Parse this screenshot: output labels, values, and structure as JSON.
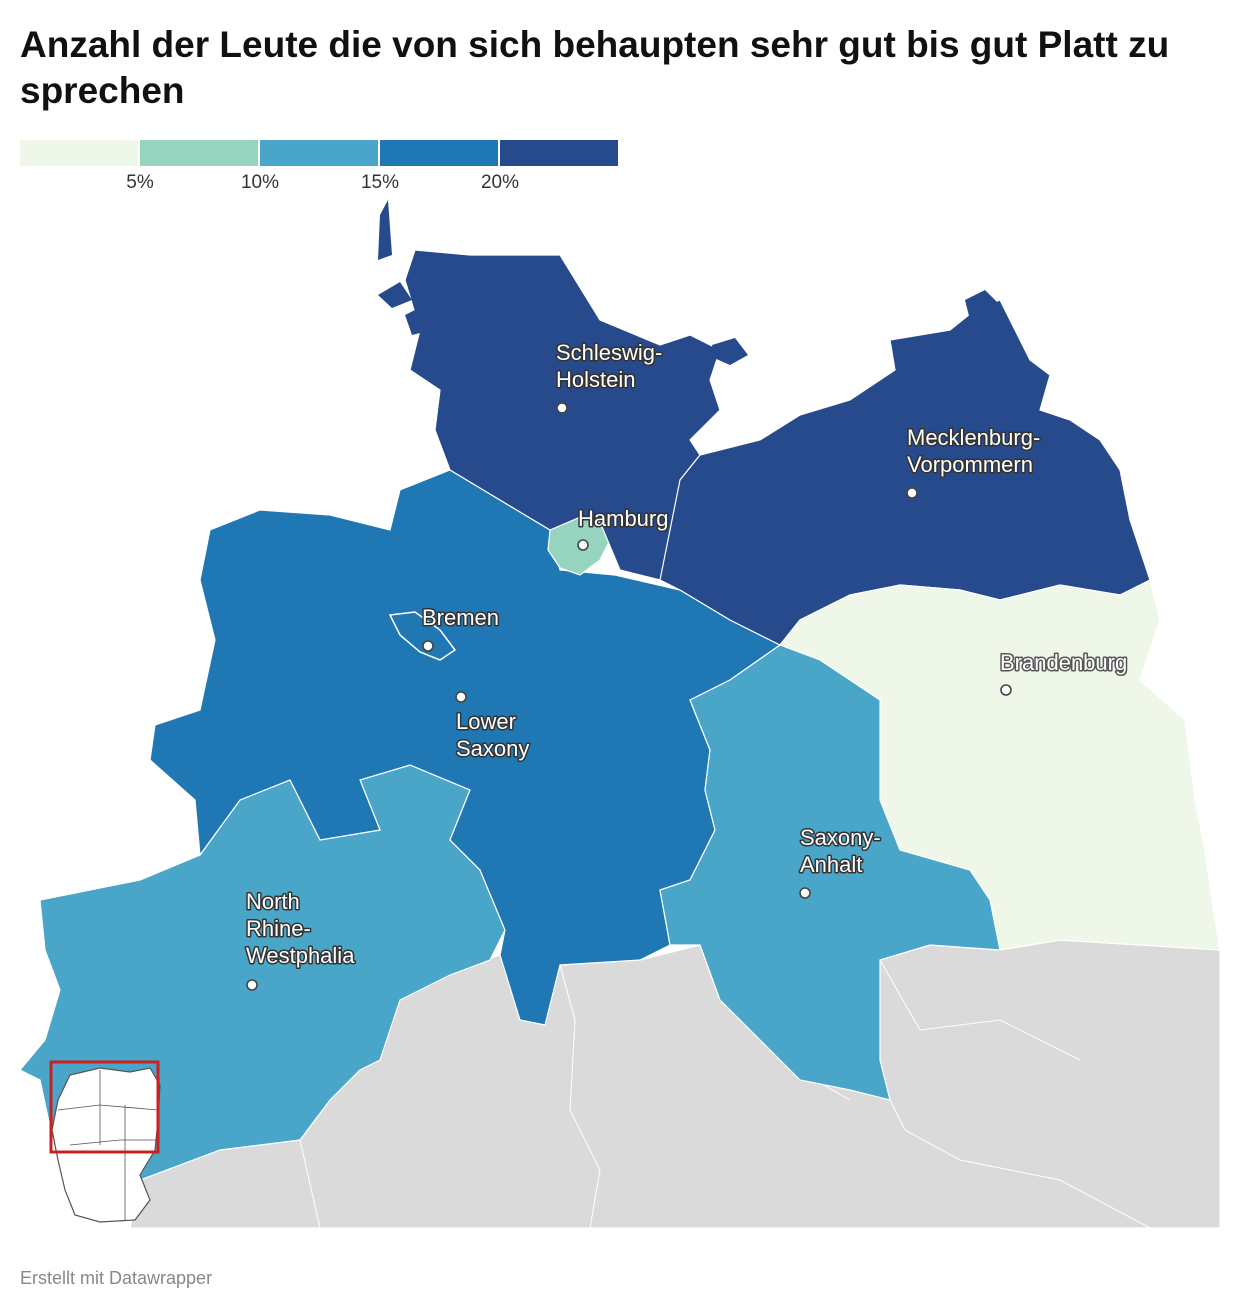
{
  "title": "Anzahl der Leute die von sich behaupten sehr gut bis gut Platt zu sprechen",
  "legend": {
    "colors": [
      "#eef7e8",
      "#96d4c0",
      "#4aa6c9",
      "#1f78b4",
      "#264a8c"
    ],
    "ticks": [
      "5%",
      "10%",
      "15%",
      "20%"
    ]
  },
  "regions": [
    {
      "name": "Schleswig-Holstein",
      "label_lines": [
        "Schleswig-",
        "Holstein"
      ],
      "color": "#264a8c"
    },
    {
      "name": "Mecklenburg-Vorpommern",
      "label_lines": [
        "Mecklenburg-",
        "Vorpommern"
      ],
      "color": "#264a8c"
    },
    {
      "name": "Hamburg",
      "label_lines": [
        "Hamburg"
      ],
      "color": "#96d4c0"
    },
    {
      "name": "Bremen",
      "label_lines": [
        "Bremen"
      ],
      "color": "#1f78b4"
    },
    {
      "name": "Lower Saxony",
      "label_lines": [
        "Lower",
        "Saxony"
      ],
      "color": "#1f78b4"
    },
    {
      "name": "Brandenburg",
      "label_lines": [
        "Brandenburg"
      ],
      "color": "#eef7e8"
    },
    {
      "name": "Saxony-Anhalt",
      "label_lines": [
        "Saxony-",
        "Anhalt"
      ],
      "color": "#4aa6c9"
    },
    {
      "name": "North Rhine-Westphalia",
      "label_lines": [
        "North",
        "Rhine-",
        "Westphalia"
      ],
      "color": "#4aa6c9"
    }
  ],
  "footer": "Erstellt mit Datawrapper"
}
